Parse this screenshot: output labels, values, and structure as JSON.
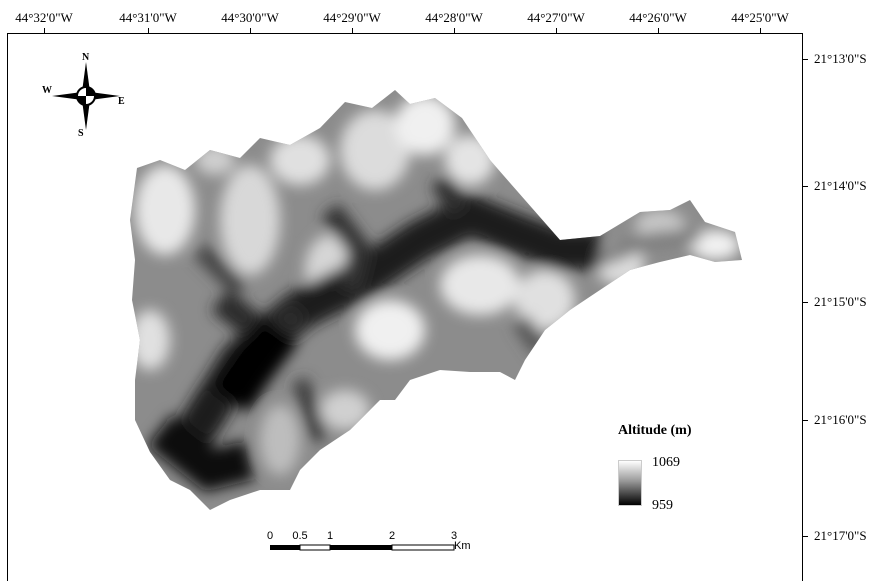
{
  "longitude_labels": [
    "44°32'0\"W",
    "44°31'0\"W",
    "44°30'0\"W",
    "44°29'0\"W",
    "44°28'0\"W",
    "44°27'0\"W",
    "44°26'0\"W",
    "44°25'0\"W"
  ],
  "latitude_labels": [
    "21°13'0\"S",
    "21°14'0\"S",
    "21°15'0\"S",
    "21°16'0\"S",
    "21°17'0\"S"
  ],
  "legend": {
    "title": "Altitude (m)",
    "max": "1069",
    "min": "959",
    "ramp_colors": [
      "#ffffff",
      "#000000"
    ]
  },
  "scale_bar": {
    "ticks": [
      "0",
      "0.5",
      "1",
      "2",
      "3"
    ],
    "unit": "Km"
  },
  "compass": {
    "n": "N",
    "s": "S",
    "e": "E",
    "w": "W",
    "icon": "north-arrow-compass-rose-icon"
  }
}
